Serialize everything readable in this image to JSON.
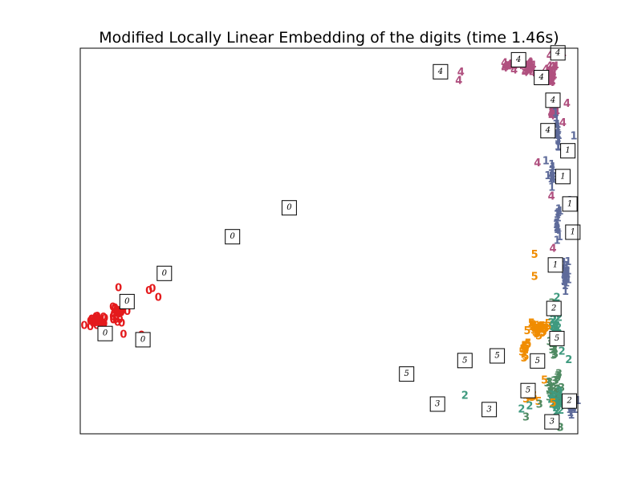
{
  "chart_data": {
    "type": "scatter",
    "title": "Modified Locally Linear Embedding of the digits (time 1.46s)",
    "xlabel": "",
    "ylabel": "",
    "xlim": [
      0,
      1
    ],
    "ylim": [
      0,
      1
    ],
    "axis_ticks": false,
    "grid": false,
    "colors": {
      "0": "#e41a1c",
      "1": "#5e6b9a",
      "2": "#3f9a7f",
      "3": "#4f8a62",
      "4": "#b0507f",
      "5": "#f08c00"
    },
    "labeled_points": [
      {
        "label": "4",
        "x": 0.944,
        "y": 0.979
      },
      {
        "label": "4",
        "x": 0.97,
        "y": 0.983
      },
      {
        "label": "4",
        "x": 0.955,
        "y": 0.952
      },
      {
        "label": "4",
        "x": 0.91,
        "y": 0.954
      },
      {
        "label": "4",
        "x": 0.872,
        "y": 0.942
      },
      {
        "label": "4",
        "x": 0.894,
        "y": 0.935
      },
      {
        "label": "4",
        "x": 0.765,
        "y": 0.936
      },
      {
        "label": "4",
        "x": 0.761,
        "y": 0.915
      },
      {
        "label": "4",
        "x": 0.978,
        "y": 0.855
      },
      {
        "label": "4",
        "x": 0.97,
        "y": 0.805
      },
      {
        "label": "4",
        "x": 0.919,
        "y": 0.701
      },
      {
        "label": "4",
        "x": 0.947,
        "y": 0.615
      },
      {
        "label": "4",
        "x": 0.95,
        "y": 0.479
      },
      {
        "label": "1",
        "x": 0.955,
        "y": 0.831
      },
      {
        "label": "1",
        "x": 0.992,
        "y": 0.771
      },
      {
        "label": "1",
        "x": 0.936,
        "y": 0.706
      },
      {
        "label": "1",
        "x": 0.94,
        "y": 0.668
      },
      {
        "label": "1",
        "x": 0.984,
        "y": 0.603
      },
      {
        "label": "1",
        "x": 0.958,
        "y": 0.544
      },
      {
        "label": "1",
        "x": 0.972,
        "y": 0.396
      },
      {
        "label": "1",
        "x": 0.975,
        "y": 0.368
      },
      {
        "label": "1",
        "x": 1.0,
        "y": 0.084
      },
      {
        "label": "1",
        "x": 0.985,
        "y": 0.053
      },
      {
        "label": "0",
        "x": 0.077,
        "y": 0.377
      },
      {
        "label": "0",
        "x": 0.008,
        "y": 0.279
      },
      {
        "label": "0",
        "x": 0.034,
        "y": 0.303
      },
      {
        "label": "0",
        "x": 0.075,
        "y": 0.287
      },
      {
        "label": "0",
        "x": 0.087,
        "y": 0.256
      },
      {
        "label": "0",
        "x": 0.123,
        "y": 0.254
      },
      {
        "label": "0",
        "x": 0.138,
        "y": 0.37
      },
      {
        "label": "0",
        "x": 0.145,
        "y": 0.375
      },
      {
        "label": "0",
        "x": 0.157,
        "y": 0.352
      },
      {
        "label": "5",
        "x": 0.913,
        "y": 0.464
      },
      {
        "label": "5",
        "x": 0.913,
        "y": 0.406
      },
      {
        "label": "5",
        "x": 0.907,
        "y": 0.285
      },
      {
        "label": "5",
        "x": 0.94,
        "y": 0.277
      },
      {
        "label": "5",
        "x": 0.9,
        "y": 0.233
      },
      {
        "label": "5",
        "x": 0.892,
        "y": 0.195
      },
      {
        "label": "5",
        "x": 0.933,
        "y": 0.138
      },
      {
        "label": "5",
        "x": 0.95,
        "y": 0.078
      },
      {
        "label": "2",
        "x": 0.958,
        "y": 0.352
      },
      {
        "label": "2",
        "x": 0.968,
        "y": 0.212
      },
      {
        "label": "2",
        "x": 0.982,
        "y": 0.191
      },
      {
        "label": "2",
        "x": 0.773,
        "y": 0.098
      },
      {
        "label": "2",
        "x": 0.903,
        "y": 0.071
      },
      {
        "label": "2",
        "x": 0.887,
        "y": 0.063
      },
      {
        "label": "3",
        "x": 0.948,
        "y": 0.338
      },
      {
        "label": "3",
        "x": 0.896,
        "y": 0.042
      },
      {
        "label": "3",
        "x": 0.923,
        "y": 0.075
      },
      {
        "label": "3",
        "x": 0.965,
        "y": 0.015
      }
    ],
    "cluster_regions": [
      {
        "label": "4",
        "x": 0.865,
        "y": 0.953,
        "sx": 0.04,
        "sy": 0.01,
        "n": 20
      },
      {
        "label": "4",
        "x": 0.9,
        "y": 0.95,
        "sx": 0.015,
        "sy": 0.022,
        "n": 24
      },
      {
        "label": "4",
        "x": 0.945,
        "y": 0.93,
        "sx": 0.012,
        "sy": 0.03,
        "n": 26
      },
      {
        "label": "4",
        "x": 0.95,
        "y": 0.835,
        "sx": 0.008,
        "sy": 0.03,
        "n": 12
      },
      {
        "label": "1",
        "x": 0.96,
        "y": 0.77,
        "sx": 0.006,
        "sy": 0.05,
        "n": 18
      },
      {
        "label": "1",
        "x": 0.948,
        "y": 0.67,
        "sx": 0.005,
        "sy": 0.04,
        "n": 14
      },
      {
        "label": "1",
        "x": 0.96,
        "y": 0.55,
        "sx": 0.006,
        "sy": 0.06,
        "n": 16
      },
      {
        "label": "1",
        "x": 0.975,
        "y": 0.42,
        "sx": 0.008,
        "sy": 0.04,
        "n": 22
      },
      {
        "label": "1",
        "x": 0.985,
        "y": 0.07,
        "sx": 0.012,
        "sy": 0.04,
        "n": 16
      },
      {
        "label": "0",
        "x": 0.035,
        "y": 0.29,
        "sx": 0.025,
        "sy": 0.022,
        "n": 30
      },
      {
        "label": "0",
        "x": 0.075,
        "y": 0.31,
        "sx": 0.025,
        "sy": 0.03,
        "n": 22
      },
      {
        "label": "5",
        "x": 0.92,
        "y": 0.27,
        "sx": 0.025,
        "sy": 0.03,
        "n": 30
      },
      {
        "label": "5",
        "x": 0.895,
        "y": 0.22,
        "sx": 0.01,
        "sy": 0.03,
        "n": 10
      },
      {
        "label": "5",
        "x": 0.91,
        "y": 0.09,
        "sx": 0.02,
        "sy": 0.015,
        "n": 8
      },
      {
        "label": "2",
        "x": 0.955,
        "y": 0.28,
        "sx": 0.012,
        "sy": 0.05,
        "n": 14
      },
      {
        "label": "3",
        "x": 0.95,
        "y": 0.23,
        "sx": 0.012,
        "sy": 0.04,
        "n": 12
      },
      {
        "label": "3",
        "x": 0.955,
        "y": 0.11,
        "sx": 0.02,
        "sy": 0.06,
        "n": 30
      },
      {
        "label": "2",
        "x": 0.96,
        "y": 0.08,
        "sx": 0.02,
        "sy": 0.04,
        "n": 24
      }
    ],
    "digit_thumbnails": [
      {
        "digit": "4",
        "x": 0.881,
        "y": 0.97
      },
      {
        "digit": "4",
        "x": 0.96,
        "y": 0.988
      },
      {
        "digit": "4",
        "x": 0.927,
        "y": 0.924
      },
      {
        "digit": "4",
        "x": 0.724,
        "y": 0.939
      },
      {
        "digit": "4",
        "x": 0.95,
        "y": 0.865
      },
      {
        "digit": "4",
        "x": 0.94,
        "y": 0.786
      },
      {
        "digit": "1",
        "x": 0.98,
        "y": 0.734
      },
      {
        "digit": "1",
        "x": 0.97,
        "y": 0.667
      },
      {
        "digit": "1",
        "x": 0.984,
        "y": 0.596
      },
      {
        "digit": "1",
        "x": 0.99,
        "y": 0.523
      },
      {
        "digit": "1",
        "x": 0.955,
        "y": 0.438
      },
      {
        "digit": "2",
        "x": 0.952,
        "y": 0.325
      },
      {
        "digit": "5",
        "x": 0.958,
        "y": 0.247
      },
      {
        "digit": "5",
        "x": 0.919,
        "y": 0.189
      },
      {
        "digit": "5",
        "x": 0.838,
        "y": 0.202
      },
      {
        "digit": "5",
        "x": 0.773,
        "y": 0.19
      },
      {
        "digit": "5",
        "x": 0.656,
        "y": 0.155
      },
      {
        "digit": "5",
        "x": 0.9,
        "y": 0.112
      },
      {
        "digit": "2",
        "x": 0.983,
        "y": 0.085
      },
      {
        "digit": "3",
        "x": 0.718,
        "y": 0.077
      },
      {
        "digit": "3",
        "x": 0.822,
        "y": 0.063
      },
      {
        "digit": "3",
        "x": 0.948,
        "y": 0.031
      },
      {
        "digit": "0",
        "x": 0.42,
        "y": 0.586
      },
      {
        "digit": "0",
        "x": 0.306,
        "y": 0.511
      },
      {
        "digit": "0",
        "x": 0.169,
        "y": 0.416
      },
      {
        "digit": "0",
        "x": 0.094,
        "y": 0.343
      },
      {
        "digit": "0",
        "x": 0.05,
        "y": 0.26
      },
      {
        "digit": "0",
        "x": 0.126,
        "y": 0.244
      }
    ]
  }
}
